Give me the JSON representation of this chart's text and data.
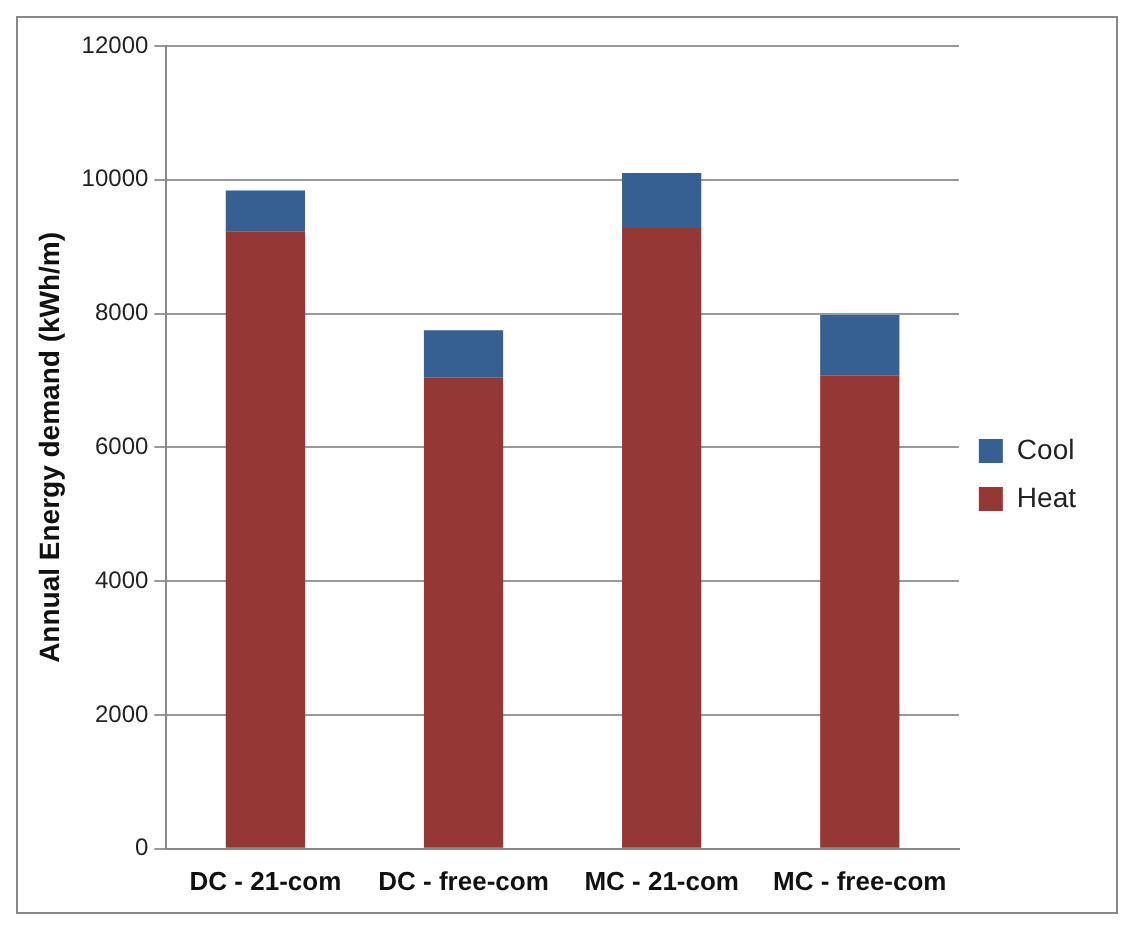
{
  "chart_data": {
    "type": "bar",
    "stacked": true,
    "ylabel": "Annual Energy demand (kWh/m)",
    "categories": [
      "DC - 21-com",
      "DC - free-com",
      "MC - 21-com",
      "MC - free-com"
    ],
    "series": [
      {
        "name": "Heat",
        "color": "#953735",
        "values": [
          9230,
          7040,
          9280,
          7070
        ]
      },
      {
        "name": "Cool",
        "color": "#376092",
        "values": [
          610,
          710,
          820,
          910
        ]
      }
    ],
    "ylim": [
      0,
      12000
    ],
    "yticks": [
      0,
      2000,
      4000,
      6000,
      8000,
      10000,
      12000
    ],
    "grid": "y",
    "legend": "right"
  }
}
